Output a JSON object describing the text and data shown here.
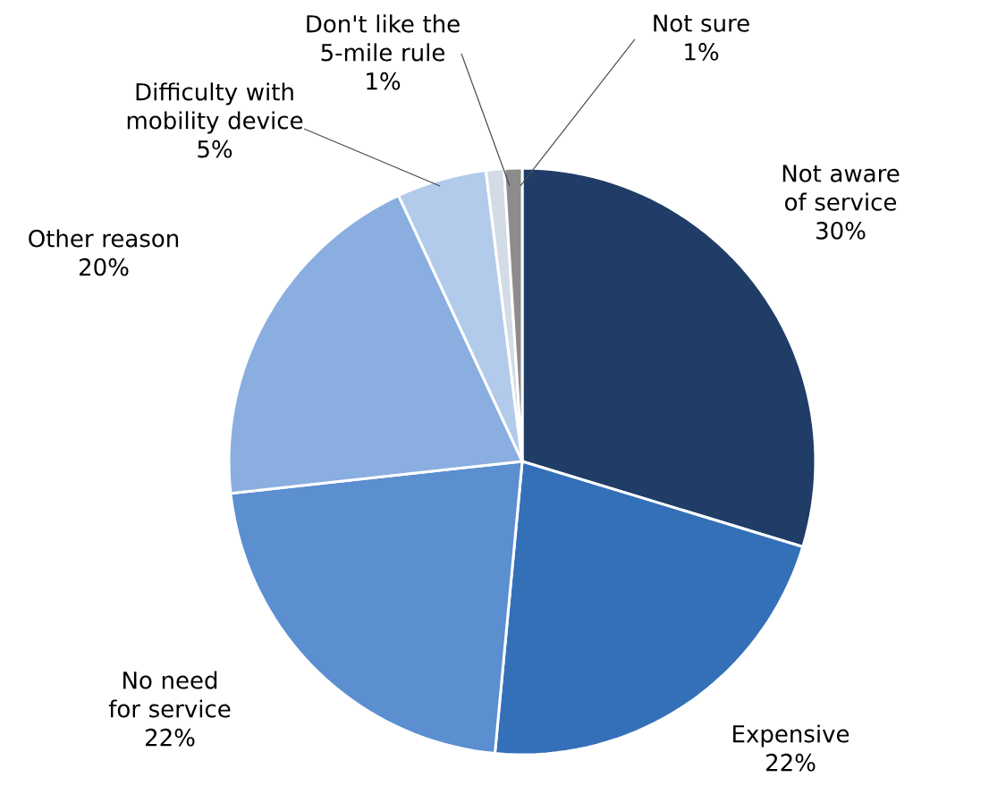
{
  "chart_data": {
    "type": "pie",
    "categories": [
      "Not aware of service",
      "Expensive",
      "No need for service",
      "Other reason",
      "Difficulty with mobility device",
      "Don't like the 5-mile rule",
      "Not sure"
    ],
    "values": [
      30,
      22,
      22,
      20,
      5,
      1,
      1
    ],
    "value_labels": [
      "30%",
      "22%",
      "22%",
      "20%",
      "5%",
      "1%",
      "1%"
    ],
    "colors": [
      "#1f3d66",
      "#3370b8",
      "#5b8fd0",
      "#8aaee0",
      "#b3cbea",
      "#d3dbe6",
      "#8c8c8c"
    ]
  }
}
